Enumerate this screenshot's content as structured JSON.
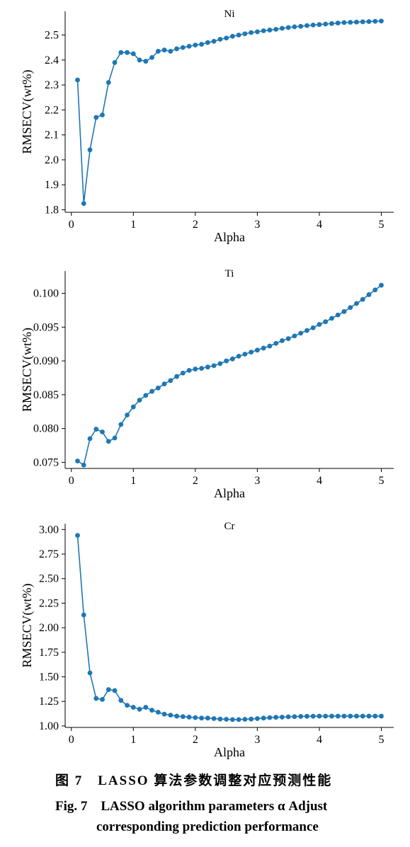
{
  "colors": {
    "series": "#1f77b4",
    "axis": "#000000"
  },
  "chart_data": [
    {
      "type": "line",
      "title": "Ni",
      "xlabel": "Alpha",
      "ylabel": "RMSECV(wt%)",
      "xlim": [
        -0.1,
        5.2
      ],
      "ylim": [
        1.79,
        2.595
      ],
      "xticks": [
        0,
        1,
        2,
        3,
        4,
        5
      ],
      "yticks": [
        1.8,
        1.9,
        2.0,
        2.1,
        2.2,
        2.3,
        2.4,
        2.5
      ],
      "ytick_labels": [
        "1.8",
        "1.9",
        "2.0",
        "2.1",
        "2.2",
        "2.3",
        "2.4",
        "2.5"
      ],
      "grid": false,
      "series": [
        {
          "x": [
            0.1,
            0.2,
            0.3,
            0.4,
            0.5,
            0.6,
            0.7,
            0.8,
            0.9,
            1.0,
            1.1,
            1.2,
            1.3,
            1.4,
            1.5,
            1.6,
            1.7,
            1.8,
            1.9,
            2.0,
            2.1,
            2.2,
            2.3,
            2.4,
            2.5,
            2.6,
            2.7,
            2.8,
            2.9,
            3.0,
            3.1,
            3.2,
            3.3,
            3.4,
            3.5,
            3.6,
            3.7,
            3.8,
            3.9,
            4.0,
            4.1,
            4.2,
            4.3,
            4.4,
            4.5,
            4.6,
            4.7,
            4.8,
            4.9,
            5.0
          ],
          "y": [
            2.32,
            1.825,
            2.04,
            2.17,
            2.18,
            2.31,
            2.39,
            2.43,
            2.43,
            2.425,
            2.4,
            2.395,
            2.41,
            2.435,
            2.44,
            2.435,
            2.445,
            2.45,
            2.455,
            2.46,
            2.463,
            2.47,
            2.475,
            2.483,
            2.488,
            2.495,
            2.5,
            2.505,
            2.51,
            2.513,
            2.517,
            2.52,
            2.523,
            2.527,
            2.53,
            2.533,
            2.535,
            2.538,
            2.54,
            2.542,
            2.544,
            2.546,
            2.548,
            2.55,
            2.551,
            2.552,
            2.553,
            2.554,
            2.555,
            2.556
          ]
        }
      ]
    },
    {
      "type": "line",
      "title": "Ti",
      "xlabel": "Alpha",
      "ylabel": "RMSECV(wt%)",
      "xlim": [
        -0.1,
        5.2
      ],
      "ylim": [
        0.0741,
        0.1033
      ],
      "xticks": [
        0,
        1,
        2,
        3,
        4,
        5
      ],
      "yticks": [
        0.075,
        0.08,
        0.085,
        0.09,
        0.095,
        0.1
      ],
      "ytick_labels": [
        "0.075",
        "0.080",
        "0.085",
        "0.090",
        "0.095",
        "0.100"
      ],
      "grid": false,
      "series": [
        {
          "x": [
            0.1,
            0.2,
            0.3,
            0.4,
            0.5,
            0.6,
            0.7,
            0.8,
            0.9,
            1.0,
            1.1,
            1.2,
            1.3,
            1.4,
            1.5,
            1.6,
            1.7,
            1.8,
            1.9,
            2.0,
            2.1,
            2.2,
            2.3,
            2.4,
            2.5,
            2.6,
            2.7,
            2.8,
            2.9,
            3.0,
            3.1,
            3.2,
            3.3,
            3.4,
            3.5,
            3.6,
            3.7,
            3.8,
            3.9,
            4.0,
            4.1,
            4.2,
            4.3,
            4.4,
            4.5,
            4.6,
            4.7,
            4.8,
            4.9,
            5.0
          ],
          "y": [
            0.0752,
            0.0746,
            0.0785,
            0.0799,
            0.0795,
            0.0781,
            0.0786,
            0.0806,
            0.082,
            0.0832,
            0.0842,
            0.0849,
            0.0855,
            0.086,
            0.0866,
            0.0871,
            0.0877,
            0.0882,
            0.0886,
            0.0888,
            0.0889,
            0.0891,
            0.0893,
            0.0896,
            0.09,
            0.0903,
            0.0907,
            0.091,
            0.0913,
            0.0916,
            0.0919,
            0.0922,
            0.0926,
            0.093,
            0.0933,
            0.0937,
            0.0941,
            0.0945,
            0.0949,
            0.0954,
            0.0958,
            0.0963,
            0.0968,
            0.0973,
            0.0979,
            0.0985,
            0.0991,
            0.0998,
            0.1005,
            0.1012
          ]
        }
      ]
    },
    {
      "type": "line",
      "title": "Cr",
      "xlabel": "Alpha",
      "ylabel": "RMSECV(wt%)",
      "xlim": [
        -0.1,
        5.2
      ],
      "ylim": [
        0.985,
        3.06
      ],
      "xticks": [
        0,
        1,
        2,
        3,
        4,
        5
      ],
      "yticks": [
        1.0,
        1.25,
        1.5,
        1.75,
        2.0,
        2.25,
        2.5,
        2.75,
        3.0
      ],
      "ytick_labels": [
        "1.00",
        "1.25",
        "1.50",
        "1.75",
        "2.00",
        "2.25",
        "2.50",
        "2.75",
        "3.00"
      ],
      "grid": false,
      "series": [
        {
          "x": [
            0.1,
            0.2,
            0.3,
            0.4,
            0.5,
            0.6,
            0.7,
            0.8,
            0.9,
            1.0,
            1.1,
            1.2,
            1.3,
            1.4,
            1.5,
            1.6,
            1.7,
            1.8,
            1.9,
            2.0,
            2.1,
            2.2,
            2.3,
            2.4,
            2.5,
            2.6,
            2.7,
            2.8,
            2.9,
            3.0,
            3.1,
            3.2,
            3.3,
            3.4,
            3.5,
            3.6,
            3.7,
            3.8,
            3.9,
            4.0,
            4.1,
            4.2,
            4.3,
            4.4,
            4.5,
            4.6,
            4.7,
            4.8,
            4.9,
            5.0
          ],
          "y": [
            2.94,
            2.13,
            1.54,
            1.28,
            1.27,
            1.37,
            1.36,
            1.26,
            1.21,
            1.19,
            1.17,
            1.19,
            1.16,
            1.14,
            1.12,
            1.11,
            1.1,
            1.095,
            1.09,
            1.085,
            1.08,
            1.08,
            1.075,
            1.07,
            1.068,
            1.065,
            1.065,
            1.068,
            1.07,
            1.075,
            1.08,
            1.085,
            1.088,
            1.09,
            1.093,
            1.095,
            1.097,
            1.098,
            1.099,
            1.1,
            1.1,
            1.1,
            1.1,
            1.1,
            1.1,
            1.1,
            1.1,
            1.1,
            1.1,
            1.1
          ]
        }
      ]
    }
  ],
  "caption": {
    "line_zh": "图 7　LASSO 算法参数调整对应预测性能",
    "line_en_1": "Fig. 7　LASSO algorithm parameters α Adjust",
    "line_en_2": "corresponding prediction performance"
  }
}
